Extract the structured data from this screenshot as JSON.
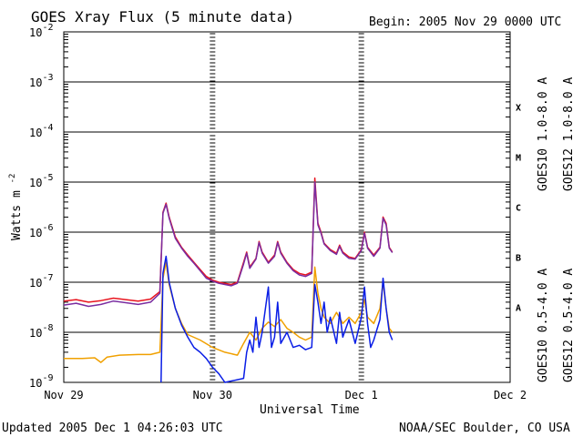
{
  "header": {
    "title": "GOES Xray Flux (5 minute data)",
    "begin": "Begin:  2005 Nov 29 0000 UTC"
  },
  "footer": {
    "updated": "Updated 2005 Dec  1 04:26:03 UTC",
    "credit": "NOAA/SEC Boulder, CO USA"
  },
  "chart_data": {
    "type": "line",
    "title": "GOES Xray Flux (5 minute data)",
    "xlabel": "Universal Time",
    "ylabel": "Watts m",
    "ylabel_sup": "-2",
    "yscale": "log",
    "ylim": [
      1e-09,
      0.01
    ],
    "xlim": [
      0,
      72
    ],
    "x_unit": "hours since 2005 Nov 29 0000 UTC",
    "x_ticks": [
      {
        "x": 0,
        "label": "Nov 29"
      },
      {
        "x": 24,
        "label": "Nov 30"
      },
      {
        "x": 48,
        "label": "Dec 1"
      },
      {
        "x": 72,
        "label": "Dec 2"
      }
    ],
    "y_ticks": [
      {
        "exp": -9,
        "base": "10",
        "sup": "-9"
      },
      {
        "exp": -8,
        "base": "10",
        "sup": "-8"
      },
      {
        "exp": -7,
        "base": "10",
        "sup": "-7"
      },
      {
        "exp": -6,
        "base": "10",
        "sup": "-6"
      },
      {
        "exp": -5,
        "base": "10",
        "sup": "-5"
      },
      {
        "exp": -4,
        "base": "10",
        "sup": "-4"
      },
      {
        "exp": -3,
        "base": "10",
        "sup": "-3"
      },
      {
        "exp": -2,
        "base": "10",
        "sup": "-2"
      }
    ],
    "flare_classes": [
      {
        "label": "A",
        "exp": -8
      },
      {
        "label": "B",
        "exp": -7
      },
      {
        "label": "C",
        "exp": -6
      },
      {
        "label": "M",
        "exp": -5
      },
      {
        "label": "X",
        "exp": -4
      }
    ],
    "legend": {
      "right_outer": [
        {
          "text": "GOES12 1.0-8.0 A",
          "color": "#e8141e"
        },
        {
          "text": "GOES12 0.5-4.0 A",
          "color": "#0a1ee6"
        }
      ],
      "right_inner": [
        {
          "text": "GOES10 1.0-8.0 A",
          "color": "#7a2ca0"
        },
        {
          "text": "GOES10 0.5-4.0 A",
          "color": "#f0a000"
        }
      ]
    },
    "series": [
      {
        "name": "GOES12 1.0-8.0 A",
        "color": "#e8141e",
        "points": [
          [
            0,
            4.2e-08
          ],
          [
            2,
            4.5e-08
          ],
          [
            4,
            4e-08
          ],
          [
            6,
            4.3e-08
          ],
          [
            8,
            4.8e-08
          ],
          [
            10,
            4.5e-08
          ],
          [
            12,
            4.2e-08
          ],
          [
            14,
            4.6e-08
          ],
          [
            15.5,
            6.5e-08
          ],
          [
            16,
            2.5e-06
          ],
          [
            16.5,
            3.8e-06
          ],
          [
            17,
            2e-06
          ],
          [
            18,
            8e-07
          ],
          [
            19,
            5e-07
          ],
          [
            20,
            3.5e-07
          ],
          [
            21,
            2.5e-07
          ],
          [
            22,
            1.8e-07
          ],
          [
            23,
            1.3e-07
          ],
          [
            24,
            1.1e-07
          ],
          [
            25,
            1e-07
          ],
          [
            26,
            9.5e-08
          ],
          [
            27,
            9e-08
          ],
          [
            28,
            1e-07
          ],
          [
            29,
            2.5e-07
          ],
          [
            29.5,
            4e-07
          ],
          [
            30,
            2e-07
          ],
          [
            31,
            3e-07
          ],
          [
            31.5,
            6.5e-07
          ],
          [
            32,
            4e-07
          ],
          [
            33,
            2.5e-07
          ],
          [
            34,
            3.5e-07
          ],
          [
            34.5,
            6.5e-07
          ],
          [
            35,
            4e-07
          ],
          [
            36,
            2.5e-07
          ],
          [
            37,
            1.8e-07
          ],
          [
            38,
            1.5e-07
          ],
          [
            39,
            1.4e-07
          ],
          [
            40,
            1.6e-07
          ],
          [
            40.5,
            1.2e-05
          ],
          [
            41,
            1.5e-06
          ],
          [
            41.5,
            1e-06
          ],
          [
            42,
            6e-07
          ],
          [
            43,
            4.5e-07
          ],
          [
            44,
            3.8e-07
          ],
          [
            44.5,
            5.5e-07
          ],
          [
            45,
            4e-07
          ],
          [
            46,
            3.2e-07
          ],
          [
            47,
            3e-07
          ],
          [
            48,
            4.5e-07
          ],
          [
            48.5,
            1e-06
          ],
          [
            49,
            5e-07
          ],
          [
            50,
            3.5e-07
          ],
          [
            51,
            5e-07
          ],
          [
            51.5,
            2e-06
          ],
          [
            52,
            1.5e-06
          ],
          [
            52.5,
            5e-07
          ],
          [
            53,
            4e-07
          ]
        ]
      },
      {
        "name": "GOES10 1.0-8.0 A",
        "color": "#7a2ca0",
        "points": [
          [
            0,
            3.5e-08
          ],
          [
            2,
            3.8e-08
          ],
          [
            4,
            3.3e-08
          ],
          [
            6,
            3.6e-08
          ],
          [
            8,
            4.2e-08
          ],
          [
            10,
            3.9e-08
          ],
          [
            12,
            3.6e-08
          ],
          [
            14,
            4e-08
          ],
          [
            15.5,
            6e-08
          ],
          [
            16,
            2.4e-06
          ],
          [
            16.5,
            3.6e-06
          ],
          [
            17,
            1.9e-06
          ],
          [
            18,
            7.5e-07
          ],
          [
            19,
            4.8e-07
          ],
          [
            20,
            3.3e-07
          ],
          [
            21,
            2.4e-07
          ],
          [
            22,
            1.7e-07
          ],
          [
            23,
            1.2e-07
          ],
          [
            24,
            1.05e-07
          ],
          [
            25,
            9.5e-08
          ],
          [
            26,
            9e-08
          ],
          [
            27,
            8.5e-08
          ],
          [
            28,
            9.5e-08
          ],
          [
            29,
            2.3e-07
          ],
          [
            29.5,
            3.8e-07
          ],
          [
            30,
            1.9e-07
          ],
          [
            31,
            2.9e-07
          ],
          [
            31.5,
            6.2e-07
          ],
          [
            32,
            3.8e-07
          ],
          [
            33,
            2.4e-07
          ],
          [
            34,
            3.3e-07
          ],
          [
            34.5,
            6.2e-07
          ],
          [
            35,
            3.8e-07
          ],
          [
            36,
            2.4e-07
          ],
          [
            37,
            1.7e-07
          ],
          [
            38,
            1.4e-07
          ],
          [
            39,
            1.3e-07
          ],
          [
            40,
            1.5e-07
          ],
          [
            40.5,
            1e-05
          ],
          [
            41,
            1.4e-06
          ],
          [
            41.5,
            9.5e-07
          ],
          [
            42,
            5.8e-07
          ],
          [
            43,
            4.3e-07
          ],
          [
            44,
            3.6e-07
          ],
          [
            44.5,
            5.2e-07
          ],
          [
            45,
            3.8e-07
          ],
          [
            46,
            3e-07
          ],
          [
            47,
            2.9e-07
          ],
          [
            48,
            4.3e-07
          ],
          [
            48.5,
            9.5e-07
          ],
          [
            49,
            4.8e-07
          ],
          [
            50,
            3.3e-07
          ],
          [
            51,
            4.8e-07
          ],
          [
            51.5,
            1.9e-06
          ],
          [
            52,
            1.4e-06
          ],
          [
            52.5,
            4.8e-07
          ],
          [
            53,
            3.9e-07
          ]
        ]
      },
      {
        "name": "GOES10 0.5-4.0 A",
        "color": "#f0a000",
        "points": [
          [
            0,
            3e-09
          ],
          [
            3,
            3e-09
          ],
          [
            5,
            3.1e-09
          ],
          [
            6,
            2.5e-09
          ],
          [
            7,
            3.2e-09
          ],
          [
            9,
            3.5e-09
          ],
          [
            12,
            3.6e-09
          ],
          [
            14,
            3.6e-09
          ],
          [
            15.5,
            4e-09
          ],
          [
            16,
            1.2e-07
          ],
          [
            16.5,
            2.5e-07
          ],
          [
            17,
            9e-08
          ],
          [
            18,
            3e-08
          ],
          [
            19,
            1.5e-08
          ],
          [
            20,
            9e-09
          ],
          [
            22,
            7e-09
          ],
          [
            24,
            5e-09
          ],
          [
            26,
            4e-09
          ],
          [
            28,
            3.5e-09
          ],
          [
            29,
            6e-09
          ],
          [
            30,
            1e-08
          ],
          [
            31,
            7e-09
          ],
          [
            32,
            1.2e-08
          ],
          [
            33,
            1.6e-08
          ],
          [
            34,
            1.3e-08
          ],
          [
            35,
            1.8e-08
          ],
          [
            36,
            1.2e-08
          ],
          [
            37,
            1e-08
          ],
          [
            38,
            8e-09
          ],
          [
            39,
            7e-09
          ],
          [
            40,
            8e-09
          ],
          [
            40.5,
            2e-07
          ],
          [
            41,
            6e-08
          ],
          [
            41.5,
            3e-08
          ],
          [
            42,
            2e-08
          ],
          [
            43,
            1.5e-08
          ],
          [
            44,
            2.5e-08
          ],
          [
            45,
            1.5e-08
          ],
          [
            46,
            2e-08
          ],
          [
            47,
            1.5e-08
          ],
          [
            48,
            2.5e-08
          ],
          [
            48.5,
            4.5e-08
          ],
          [
            49,
            2e-08
          ],
          [
            50,
            1.5e-08
          ],
          [
            51,
            3e-08
          ],
          [
            51.5,
            1e-07
          ],
          [
            52,
            3e-08
          ],
          [
            52.5,
            1.2e-08
          ],
          [
            53,
            1e-08
          ]
        ]
      },
      {
        "name": "GOES12 0.5-4.0 A",
        "color": "#0a1ee6",
        "points": [
          [
            15.7,
            1e-09
          ],
          [
            16,
            1.5e-07
          ],
          [
            16.5,
            3.3e-07
          ],
          [
            17,
            1e-07
          ],
          [
            18,
            3e-08
          ],
          [
            19,
            1.4e-08
          ],
          [
            20,
            8e-09
          ],
          [
            21,
            5e-09
          ],
          [
            22,
            4e-09
          ],
          [
            23,
            3e-09
          ],
          [
            24,
            2e-09
          ],
          [
            25,
            1.5e-09
          ],
          [
            26,
            1e-09
          ],
          [
            29,
            1.2e-09
          ],
          [
            29.5,
            4e-09
          ],
          [
            30,
            7e-09
          ],
          [
            30.5,
            4e-09
          ],
          [
            31,
            2e-08
          ],
          [
            31.5,
            5e-09
          ],
          [
            32,
            1e-08
          ],
          [
            33,
            8e-08
          ],
          [
            33.5,
            5e-09
          ],
          [
            34,
            8e-09
          ],
          [
            34.5,
            4e-08
          ],
          [
            35,
            6e-09
          ],
          [
            36,
            1e-08
          ],
          [
            37,
            5e-09
          ],
          [
            38,
            5.5e-09
          ],
          [
            39,
            4.5e-09
          ],
          [
            40,
            5e-09
          ],
          [
            40.5,
            9e-08
          ],
          [
            41,
            4e-08
          ],
          [
            41.5,
            1.5e-08
          ],
          [
            42,
            4e-08
          ],
          [
            42.5,
            1e-08
          ],
          [
            43,
            2e-08
          ],
          [
            44,
            6e-09
          ],
          [
            44.5,
            2.5e-08
          ],
          [
            45,
            8e-09
          ],
          [
            46,
            1.8e-08
          ],
          [
            47,
            6e-09
          ],
          [
            48,
            2e-08
          ],
          [
            48.5,
            8e-08
          ],
          [
            49,
            1.5e-08
          ],
          [
            49.5,
            5e-09
          ],
          [
            50,
            7e-09
          ],
          [
            51,
            1.8e-08
          ],
          [
            51.5,
            1.2e-07
          ],
          [
            52,
            3e-08
          ],
          [
            52.5,
            1e-08
          ],
          [
            53,
            7e-09
          ]
        ]
      }
    ]
  }
}
